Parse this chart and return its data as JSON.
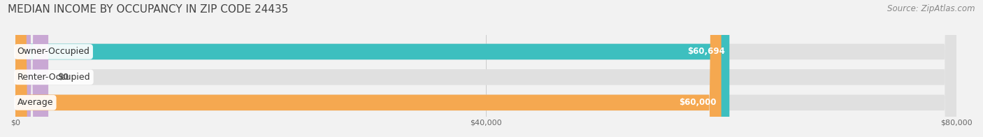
{
  "title": "MEDIAN INCOME BY OCCUPANCY IN ZIP CODE 24435",
  "source": "Source: ZipAtlas.com",
  "categories": [
    "Owner-Occupied",
    "Renter-Occupied",
    "Average"
  ],
  "values": [
    60694,
    0,
    60000
  ],
  "bar_colors": [
    "#3dbfbf",
    "#c9a8d4",
    "#f5a850"
  ],
  "bar_labels": [
    "$60,694",
    "$0",
    "$60,000"
  ],
  "xlim": [
    0,
    80000
  ],
  "xticks": [
    0,
    40000,
    80000
  ],
  "xtick_labels": [
    "$0",
    "$40,000",
    "$80,000"
  ],
  "background_color": "#f2f2f2",
  "bar_bg_color": "#e0e0e0",
  "figsize": [
    14.06,
    1.96
  ],
  "dpi": 100,
  "title_fontsize": 11,
  "source_fontsize": 8.5,
  "bar_label_fontsize": 8.5,
  "cat_label_fontsize": 9
}
